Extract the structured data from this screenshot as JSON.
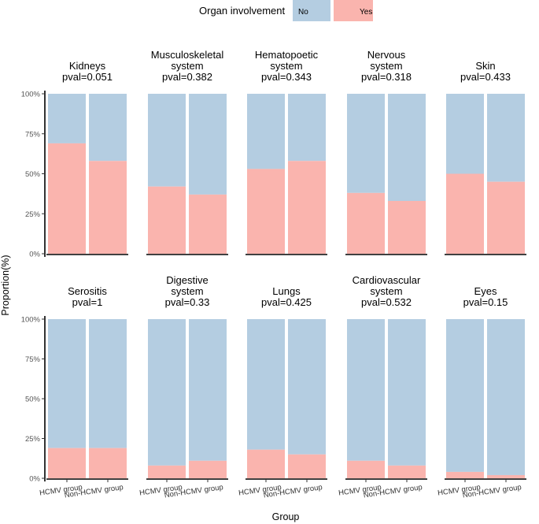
{
  "chart_data": {
    "type": "bar",
    "subtype": "stacked-proportion",
    "legend": {
      "title": "Organ involvement",
      "position": "top",
      "entries": [
        {
          "name": "No",
          "color": "#b4cde1"
        },
        {
          "name": "Yes",
          "color": "#fab4ae"
        }
      ]
    },
    "xlabel": "Group",
    "ylabel": "Proportion(%)",
    "ylim": [
      0,
      100
    ],
    "yticks": [
      "0%",
      "25%",
      "50%",
      "75%",
      "100%"
    ],
    "categories": [
      "HCMV group",
      "Non-HCMV group"
    ],
    "panels": [
      {
        "title_lines": [
          "Kidneys"
        ],
        "pval": "pval=0.051",
        "yes": [
          69,
          58
        ]
      },
      {
        "title_lines": [
          "Musculoskeletal",
          "system"
        ],
        "pval": "pval=0.382",
        "yes": [
          42,
          37
        ]
      },
      {
        "title_lines": [
          "Hematopoetic",
          "system"
        ],
        "pval": "pval=0.343",
        "yes": [
          53,
          58
        ]
      },
      {
        "title_lines": [
          "Nervous",
          "system"
        ],
        "pval": "pval=0.318",
        "yes": [
          38,
          33
        ]
      },
      {
        "title_lines": [
          "Skin"
        ],
        "pval": "pval=0.433",
        "yes": [
          50,
          45
        ]
      },
      {
        "title_lines": [
          "Serositis"
        ],
        "pval": "pval=1",
        "yes": [
          19,
          19
        ]
      },
      {
        "title_lines": [
          "Digestive",
          "system"
        ],
        "pval": "pval=0.33",
        "yes": [
          8,
          11
        ]
      },
      {
        "title_lines": [
          "Lungs"
        ],
        "pval": "pval=0.425",
        "yes": [
          18,
          15
        ]
      },
      {
        "title_lines": [
          "Cardiovascular",
          "system"
        ],
        "pval": "pval=0.532",
        "yes": [
          11,
          8
        ]
      },
      {
        "title_lines": [
          "Eyes"
        ],
        "pval": "pval=0.15",
        "yes": [
          4,
          2
        ]
      }
    ]
  },
  "colors": {
    "no": "#b4cde1",
    "yes": "#fab4ae"
  }
}
